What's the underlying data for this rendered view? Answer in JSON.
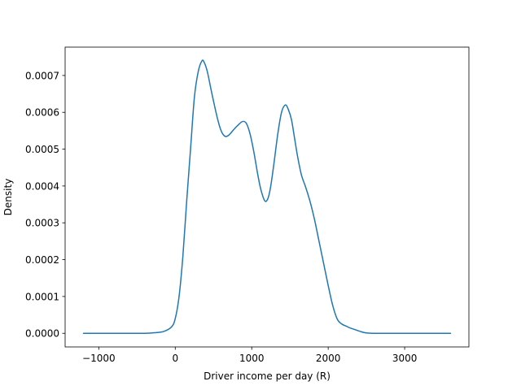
{
  "chart_data": {
    "type": "line",
    "title": "",
    "xlabel": "Driver income per day (R)",
    "ylabel": "Density",
    "xlim": [
      -1440,
      3840
    ],
    "ylim": [
      -3.7e-05,
      0.000777
    ],
    "xticks": [
      -1000,
      0,
      1000,
      2000,
      3000
    ],
    "xtick_labels": [
      "−1000",
      "0",
      "1000",
      "2000",
      "3000"
    ],
    "yticks": [
      0.0,
      0.0001,
      0.0002,
      0.0003,
      0.0004,
      0.0005,
      0.0006,
      0.0007
    ],
    "ytick_labels": [
      "0.0000",
      "0.0001",
      "0.0002",
      "0.0003",
      "0.0004",
      "0.0005",
      "0.0006",
      "0.0007"
    ],
    "grid": false,
    "legend": "none",
    "color": "#1f77b4",
    "series": [
      {
        "x": [
          -1200,
          -800,
          -400,
          -250,
          -150,
          -50,
          0,
          50,
          100,
          150,
          200,
          250,
          300,
          350,
          380,
          420,
          480,
          550,
          600,
          650,
          700,
          760,
          820,
          880,
          930,
          980,
          1030,
          1080,
          1120,
          1170,
          1210,
          1245,
          1290,
          1340,
          1390,
          1440,
          1480,
          1520,
          1560,
          1600,
          1650,
          1700,
          1760,
          1820,
          1880,
          1940,
          2000,
          2060,
          2120,
          2180,
          2230,
          2280,
          2350,
          2420,
          2500,
          2600,
          2800,
          3200,
          3600
        ],
        "y": [
          0.0,
          0.0,
          0.0,
          2e-06,
          5e-06,
          1.7e-05,
          4e-05,
          0.0001,
          0.00021,
          0.00036,
          0.0005,
          0.00064,
          0.00071,
          0.00074,
          0.000735,
          0.00071,
          0.00065,
          0.000585,
          0.00055,
          0.000535,
          0.000538,
          0.000552,
          0.000565,
          0.000575,
          0.00057,
          0.00054,
          0.00049,
          0.00043,
          0.00039,
          0.00036,
          0.000365,
          0.000395,
          0.00046,
          0.00054,
          0.0006,
          0.00062,
          0.000607,
          0.00058,
          0.00053,
          0.00048,
          0.00043,
          0.0004,
          0.00036,
          0.00031,
          0.00025,
          0.00019,
          0.00013,
          7.5e-05,
          3.8e-05,
          2.5e-05,
          2e-05,
          1.5e-05,
          1e-05,
          5e-06,
          1e-06,
          0.0,
          0.0,
          0.0,
          0.0
        ]
      }
    ]
  }
}
